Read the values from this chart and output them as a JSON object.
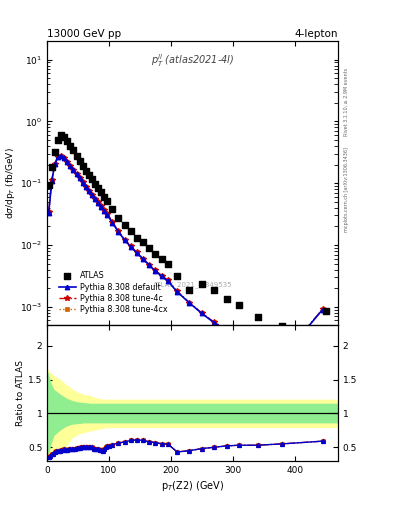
{
  "title_left": "13000 GeV pp",
  "title_right": "4-lepton",
  "panel_label": "p$_T^{ll}$ (atlas2021-4l)",
  "watermark": "ATLAS_2021_I1849535",
  "side_text_top": "Rivet 3.1.10, ≥ 2.9M events",
  "side_text_bot": "mcplots.cern.ch [arXiv:1306.3436]",
  "ylabel_main": "dσ/dp_T (fb/GeV)",
  "ylabel_ratio": "Ratio to ATLAS",
  "xlabel": "p_T(Z2) (GeV)",
  "xlim": [
    0,
    470
  ],
  "ylim_main": [
    0.0005,
    20
  ],
  "ylim_ratio": [
    0.3,
    2.3
  ],
  "data_x": [
    2.5,
    7.5,
    12.5,
    17.5,
    22.5,
    27.5,
    32.5,
    37.5,
    42.5,
    47.5,
    52.5,
    57.5,
    62.5,
    67.5,
    72.5,
    77.5,
    82.5,
    87.5,
    92.5,
    97.5,
    105,
    115,
    125,
    135,
    145,
    155,
    165,
    175,
    185,
    195,
    210,
    230,
    250,
    270,
    290,
    310,
    340,
    380,
    450
  ],
  "data_y": [
    0.095,
    0.185,
    0.32,
    0.5,
    0.6,
    0.55,
    0.48,
    0.4,
    0.34,
    0.28,
    0.23,
    0.19,
    0.16,
    0.135,
    0.115,
    0.098,
    0.083,
    0.071,
    0.06,
    0.051,
    0.038,
    0.027,
    0.021,
    0.017,
    0.013,
    0.011,
    0.0088,
    0.0072,
    0.0059,
    0.0049,
    0.0032,
    0.0019,
    0.0023,
    0.0019,
    0.00135,
    0.00105,
    0.00068,
    0.00048,
    0.00085
  ],
  "mc_x": [
    2.5,
    7.5,
    12.5,
    17.5,
    22.5,
    27.5,
    32.5,
    37.5,
    42.5,
    47.5,
    52.5,
    57.5,
    62.5,
    67.5,
    72.5,
    77.5,
    82.5,
    87.5,
    92.5,
    97.5,
    105,
    115,
    125,
    135,
    145,
    155,
    165,
    175,
    185,
    195,
    210,
    230,
    250,
    270,
    290,
    310,
    340,
    380,
    445
  ],
  "mc_default_y": [
    0.033,
    0.11,
    0.205,
    0.265,
    0.275,
    0.252,
    0.222,
    0.191,
    0.163,
    0.14,
    0.119,
    0.101,
    0.087,
    0.074,
    0.064,
    0.055,
    0.048,
    0.041,
    0.036,
    0.031,
    0.023,
    0.0165,
    0.012,
    0.0094,
    0.0074,
    0.0059,
    0.0047,
    0.0038,
    0.0031,
    0.0026,
    0.00175,
    0.00115,
    0.00078,
    0.00055,
    0.00042,
    0.00033,
    0.00023,
    0.00015,
    0.0009
  ],
  "mc_4c_y": [
    0.034,
    0.112,
    0.208,
    0.267,
    0.277,
    0.254,
    0.224,
    0.193,
    0.165,
    0.142,
    0.121,
    0.103,
    0.088,
    0.075,
    0.065,
    0.056,
    0.049,
    0.042,
    0.037,
    0.032,
    0.0235,
    0.0168,
    0.0122,
    0.0096,
    0.0076,
    0.006,
    0.0048,
    0.0039,
    0.0032,
    0.0027,
    0.00178,
    0.00117,
    0.00079,
    0.00056,
    0.00043,
    0.00034,
    0.00024,
    0.000155,
    0.00091
  ],
  "mc_4cx_y": [
    0.034,
    0.112,
    0.208,
    0.267,
    0.277,
    0.254,
    0.224,
    0.193,
    0.165,
    0.142,
    0.121,
    0.103,
    0.088,
    0.075,
    0.065,
    0.056,
    0.049,
    0.042,
    0.037,
    0.032,
    0.0235,
    0.0168,
    0.0122,
    0.0096,
    0.0076,
    0.006,
    0.0048,
    0.0039,
    0.0032,
    0.0027,
    0.00178,
    0.00117,
    0.00079,
    0.00056,
    0.00043,
    0.00034,
    0.00024,
    0.000155,
    0.00091
  ],
  "ratio_x": [
    2.5,
    5,
    7.5,
    10,
    12.5,
    15,
    17.5,
    20,
    22.5,
    25,
    27.5,
    30,
    32.5,
    35,
    37.5,
    40,
    42.5,
    45,
    47.5,
    50,
    52.5,
    55,
    57.5,
    60,
    62.5,
    65,
    67.5,
    70,
    72.5,
    75,
    77.5,
    80,
    82.5,
    85,
    87.5,
    90,
    92.5,
    95,
    97.5,
    100,
    105,
    115,
    125,
    135,
    145,
    155,
    165,
    175,
    185,
    195,
    210,
    230,
    250,
    270,
    290,
    310,
    340,
    380,
    445
  ],
  "ratio_default": [
    0.35,
    0.37,
    0.4,
    0.4,
    0.43,
    0.44,
    0.44,
    0.45,
    0.46,
    0.46,
    0.47,
    0.46,
    0.46,
    0.47,
    0.48,
    0.47,
    0.48,
    0.48,
    0.49,
    0.49,
    0.49,
    0.5,
    0.5,
    0.5,
    0.5,
    0.5,
    0.5,
    0.5,
    0.5,
    0.47,
    0.48,
    0.47,
    0.47,
    0.46,
    0.46,
    0.44,
    0.48,
    0.5,
    0.52,
    0.52,
    0.54,
    0.56,
    0.58,
    0.6,
    0.61,
    0.6,
    0.58,
    0.57,
    0.55,
    0.55,
    0.43,
    0.45,
    0.48,
    0.5,
    0.52,
    0.53,
    0.53,
    0.55,
    0.59
  ],
  "ratio_4c": [
    0.35,
    0.37,
    0.4,
    0.4,
    0.43,
    0.44,
    0.44,
    0.45,
    0.46,
    0.46,
    0.47,
    0.46,
    0.46,
    0.47,
    0.48,
    0.47,
    0.48,
    0.48,
    0.49,
    0.49,
    0.49,
    0.5,
    0.5,
    0.5,
    0.5,
    0.5,
    0.5,
    0.5,
    0.5,
    0.47,
    0.48,
    0.47,
    0.47,
    0.46,
    0.46,
    0.44,
    0.48,
    0.5,
    0.52,
    0.52,
    0.54,
    0.56,
    0.58,
    0.6,
    0.61,
    0.6,
    0.58,
    0.57,
    0.55,
    0.55,
    0.43,
    0.45,
    0.48,
    0.5,
    0.52,
    0.53,
    0.53,
    0.55,
    0.59
  ],
  "ratio_4cx": [
    0.35,
    0.37,
    0.4,
    0.4,
    0.43,
    0.44,
    0.44,
    0.45,
    0.46,
    0.46,
    0.47,
    0.46,
    0.46,
    0.47,
    0.48,
    0.47,
    0.48,
    0.48,
    0.49,
    0.49,
    0.49,
    0.5,
    0.5,
    0.5,
    0.5,
    0.5,
    0.5,
    0.5,
    0.5,
    0.47,
    0.48,
    0.47,
    0.47,
    0.46,
    0.46,
    0.44,
    0.48,
    0.5,
    0.52,
    0.52,
    0.54,
    0.56,
    0.58,
    0.6,
    0.61,
    0.6,
    0.58,
    0.57,
    0.55,
    0.55,
    0.43,
    0.45,
    0.48,
    0.5,
    0.52,
    0.53,
    0.53,
    0.55,
    0.59
  ],
  "band_x": [
    0,
    2,
    5,
    10,
    20,
    30,
    40,
    50,
    60,
    70,
    80,
    90,
    100,
    120,
    140,
    160,
    180,
    200,
    230,
    260,
    300,
    350,
    400,
    470
  ],
  "green_hi": [
    1.6,
    1.55,
    1.45,
    1.35,
    1.28,
    1.22,
    1.18,
    1.16,
    1.15,
    1.14,
    1.14,
    1.14,
    1.14,
    1.14,
    1.14,
    1.14,
    1.14,
    1.14,
    1.14,
    1.14,
    1.14,
    1.14,
    1.14,
    1.14
  ],
  "green_lo": [
    0.4,
    0.42,
    0.55,
    0.68,
    0.76,
    0.82,
    0.85,
    0.86,
    0.87,
    0.87,
    0.87,
    0.87,
    0.87,
    0.87,
    0.87,
    0.87,
    0.87,
    0.87,
    0.87,
    0.87,
    0.87,
    0.87,
    0.87,
    0.87
  ],
  "yellow_hi": [
    1.65,
    1.6,
    1.6,
    1.55,
    1.5,
    1.42,
    1.35,
    1.3,
    1.27,
    1.25,
    1.22,
    1.2,
    1.2,
    1.2,
    1.2,
    1.2,
    1.2,
    1.2,
    1.2,
    1.2,
    1.2,
    1.2,
    1.2,
    1.2
  ],
  "yellow_lo": [
    0.35,
    0.37,
    0.38,
    0.38,
    0.42,
    0.52,
    0.65,
    0.7,
    0.73,
    0.75,
    0.77,
    0.79,
    0.8,
    0.8,
    0.8,
    0.8,
    0.8,
    0.8,
    0.8,
    0.8,
    0.8,
    0.8,
    0.8,
    0.8
  ],
  "color_data": "#000000",
  "color_default": "#0000cc",
  "color_4c": "#cc0000",
  "color_4cx": "#cc6600",
  "color_green": "#90ee90",
  "color_yellow": "#ffff99"
}
